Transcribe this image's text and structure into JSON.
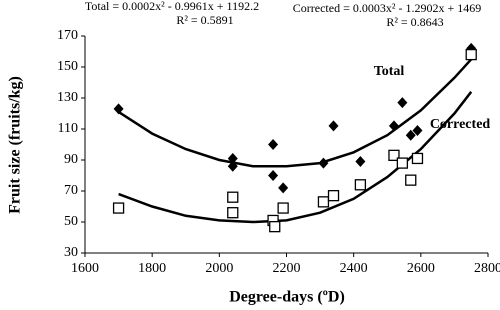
{
  "chart_data": {
    "type": "scatter",
    "x_label": "Degree-days (ºD)",
    "y_label": "Fruit size (fruits/kg)",
    "xlim": [
      1600,
      2800
    ],
    "xticks": [
      1600,
      1800,
      2000,
      2200,
      2400,
      2600,
      2800
    ],
    "ylim": [
      30,
      170
    ],
    "yticks": [
      30,
      50,
      70,
      90,
      110,
      130,
      150,
      170
    ],
    "annotations": [
      "Total = 0.0002x² - 0.9961x + 1192.2",
      "R² = 0.5891",
      "Corrected = 0.0003x² - 1.2902x + 1469",
      "R² = 0.8643"
    ],
    "series": [
      {
        "name": "Total",
        "color": "#000000",
        "marker": "diamond",
        "x": [
          1700,
          2040,
          2040,
          2160,
          2160,
          2190,
          2310,
          2340,
          2420,
          2520,
          2545,
          2570,
          2590,
          2750
        ],
        "values": [
          123,
          91,
          86,
          100,
          80,
          72,
          88,
          112,
          89,
          112,
          127,
          106,
          109,
          162
        ],
        "trend": {
          "x": [
            1700,
            1800,
            1900,
            2000,
            2100,
            2200,
            2300,
            2400,
            2500,
            2600,
            2700,
            2750
          ],
          "values": [
            121,
            107,
            97,
            90,
            86,
            86,
            88,
            95,
            106,
            122,
            143,
            155
          ]
        }
      },
      {
        "name": "Corrected",
        "color": "#000000",
        "marker": "square",
        "x": [
          1700,
          2040,
          2040,
          2160,
          2165,
          2190,
          2310,
          2340,
          2420,
          2520,
          2545,
          2570,
          2590,
          2750
        ],
        "values": [
          59,
          66,
          56,
          51,
          47,
          59,
          63,
          67,
          74,
          93,
          88,
          77,
          91,
          158
        ],
        "trend": {
          "x": [
            1700,
            1800,
            1900,
            2000,
            2100,
            2200,
            2300,
            2400,
            2500,
            2600,
            2700,
            2750
          ],
          "values": [
            68,
            60,
            54,
            51,
            50,
            51,
            56,
            65,
            79,
            97,
            120,
            134
          ]
        }
      }
    ]
  }
}
